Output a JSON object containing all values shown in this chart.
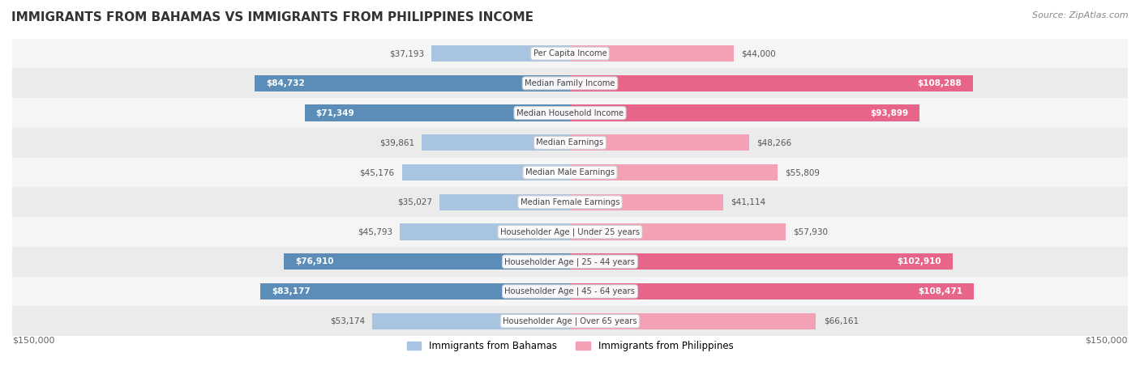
{
  "title": "IMMIGRANTS FROM BAHAMAS VS IMMIGRANTS FROM PHILIPPINES INCOME",
  "source": "Source: ZipAtlas.com",
  "categories": [
    "Per Capita Income",
    "Median Family Income",
    "Median Household Income",
    "Median Earnings",
    "Median Male Earnings",
    "Median Female Earnings",
    "Householder Age | Under 25 years",
    "Householder Age | 25 - 44 years",
    "Householder Age | 45 - 64 years",
    "Householder Age | Over 65 years"
  ],
  "bahamas_values": [
    37193,
    84732,
    71349,
    39861,
    45176,
    35027,
    45793,
    76910,
    83177,
    53174
  ],
  "philippines_values": [
    44000,
    108288,
    93899,
    48266,
    55809,
    41114,
    57930,
    102910,
    108471,
    66161
  ],
  "bahamas_labels": [
    "$37,193",
    "$84,732",
    "$71,349",
    "$39,861",
    "$45,176",
    "$35,027",
    "$45,793",
    "$76,910",
    "$83,177",
    "$53,174"
  ],
  "philippines_labels": [
    "$44,000",
    "$108,288",
    "$93,899",
    "$48,266",
    "$55,809",
    "$41,114",
    "$57,930",
    "$102,910",
    "$108,471",
    "$66,161"
  ],
  "bahamas_color_light": "#a8c4e0",
  "bahamas_color_dark": "#5b8db8",
  "philippines_color_light": "#f4a0b5",
  "philippines_color_dark": "#e8658a",
  "max_value": 150000,
  "background_color": "#ffffff",
  "row_bg_color": "#f0f0f0",
  "legend_bahamas": "Immigrants from Bahamas",
  "legend_philippines": "Immigrants from Philippines",
  "xlabel_left": "$150,000",
  "xlabel_right": "$150,000"
}
